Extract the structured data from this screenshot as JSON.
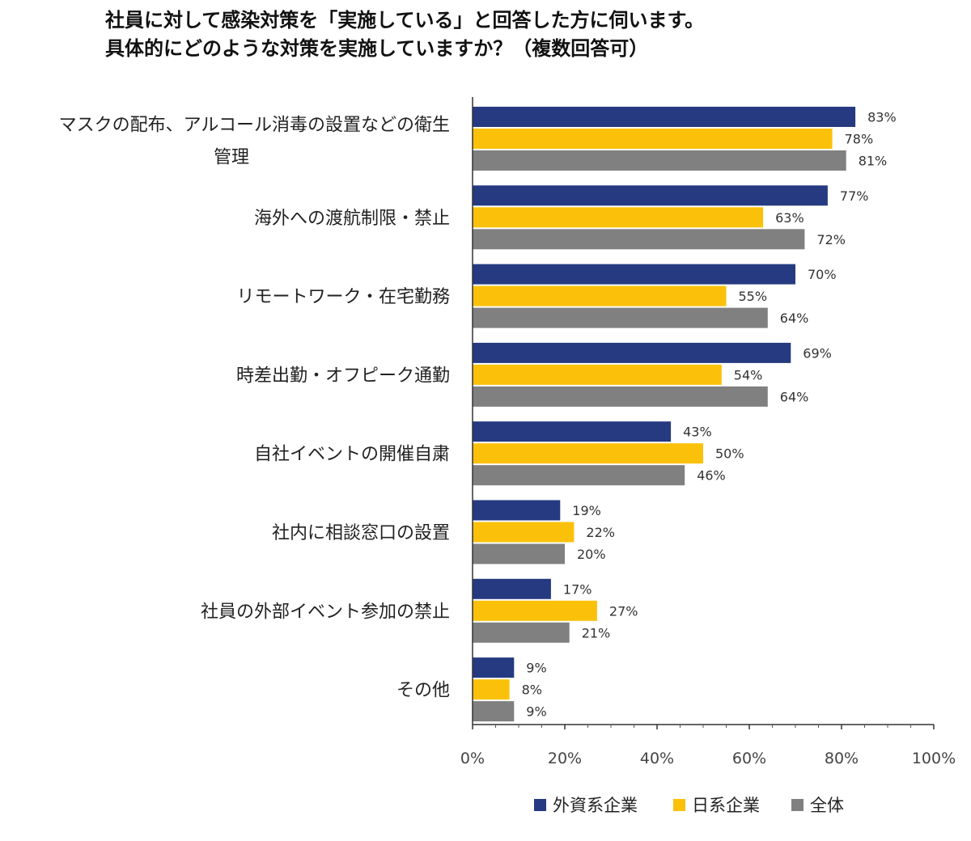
{
  "chart_data": {
    "type": "bar",
    "orientation": "horizontal",
    "title_lines": [
      "社員に対して感染対策を「実施している」と回答した方に伺います。",
      "具体的にどのような対策を実施していますか？（複数回答可）"
    ],
    "categories": [
      [
        "マスクの配布、アルコール消毒の設置などの衛生",
        "管理"
      ],
      [
        "海外への渡航制限・禁止"
      ],
      [
        "リモートワーク・在宅勤務"
      ],
      [
        "時差出勤・オフピーク通勤"
      ],
      [
        "自社イベントの開催自粛"
      ],
      [
        "社内に相談窓口の設置"
      ],
      [
        "社員の外部イベント参加の禁止"
      ],
      [
        "その他"
      ]
    ],
    "series": [
      {
        "name": "外資系企業",
        "color": "#253a80",
        "values": [
          83,
          77,
          70,
          69,
          43,
          19,
          17,
          9
        ]
      },
      {
        "name": "日系企業",
        "color": "#fbc10a",
        "values": [
          78,
          63,
          55,
          54,
          50,
          22,
          27,
          8
        ]
      },
      {
        "name": "全体",
        "color": "#808080",
        "values": [
          81,
          72,
          64,
          64,
          46,
          20,
          21,
          9
        ]
      }
    ],
    "value_suffix": "%",
    "xlim": [
      0,
      100
    ],
    "xticks": [
      "0%",
      "20%",
      "40%",
      "60%",
      "80%",
      "100%"
    ],
    "legend_position": "bottom"
  }
}
